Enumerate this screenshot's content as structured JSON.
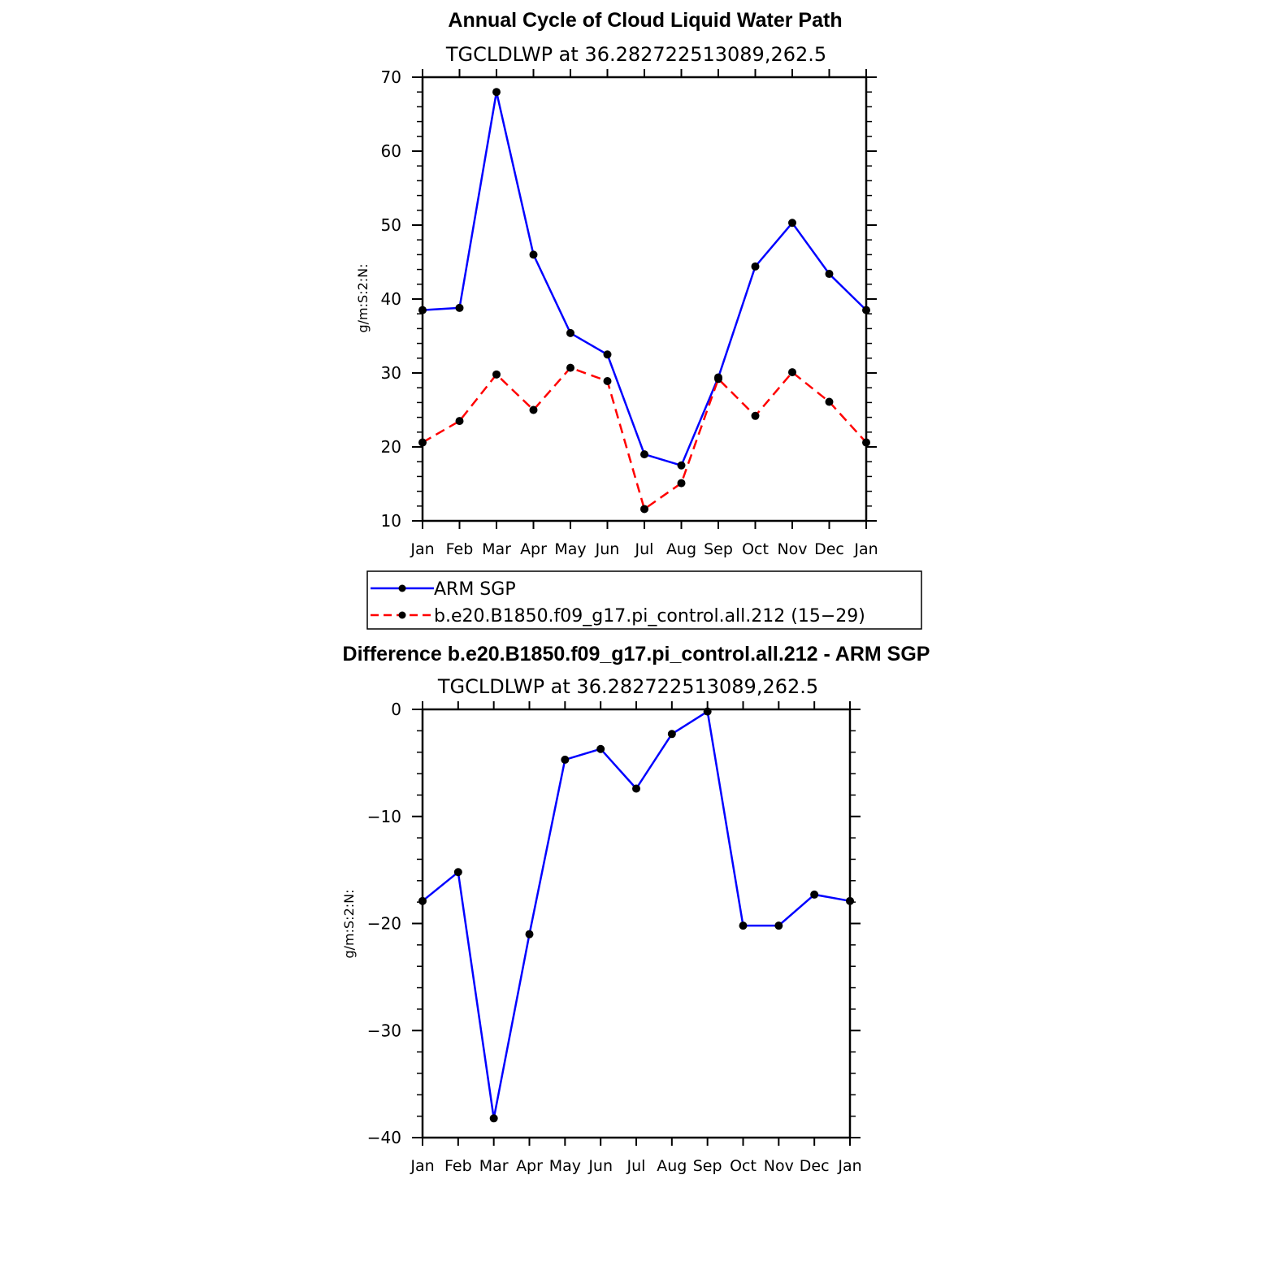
{
  "colors": {
    "series_1": "#0000ff",
    "series_2": "#ff0000",
    "marker": "#000000",
    "axis": "#000000"
  },
  "legend": {
    "entries": [
      {
        "label": "ARM SGP",
        "color": "#0000ff",
        "dash": "solid"
      },
      {
        "label": "b.e20.B1850.f09_g17.pi_control.all.212 (15−29)",
        "color": "#ff0000",
        "dash": "dashed"
      }
    ]
  },
  "chart_data": [
    {
      "type": "line",
      "title": "Annual Cycle of Cloud Liquid Water Path",
      "subtitle": "TGCLDLWP  at  36.282722513089,262.5",
      "ylabel": "g/m:S:2:N:",
      "ylim": [
        10,
        70
      ],
      "yticks": [
        "10",
        "20",
        "30",
        "40",
        "50",
        "60",
        "70"
      ],
      "categories": [
        "Jan",
        "Feb",
        "Mar",
        "Apr",
        "May",
        "Jun",
        "Jul",
        "Aug",
        "Sep",
        "Oct",
        "Nov",
        "Dec",
        "Jan"
      ],
      "series": [
        {
          "name": "ARM SGP",
          "color": "#0000ff",
          "dash": "solid",
          "values": [
            38.5,
            38.8,
            68.0,
            46.0,
            35.4,
            32.5,
            19.0,
            17.5,
            29.4,
            44.4,
            50.3,
            43.4,
            38.5
          ]
        },
        {
          "name": "b.e20.B1850.f09_g17.pi_control.all.212 (15−29)",
          "color": "#ff0000",
          "dash": "dashed",
          "values": [
            20.6,
            23.5,
            29.8,
            25.0,
            30.7,
            28.9,
            11.6,
            15.1,
            29.2,
            24.2,
            30.1,
            26.1,
            20.6
          ]
        }
      ]
    },
    {
      "type": "line",
      "title": "Difference b.e20.B1850.f09_g17.pi_control.all.212 - ARM SGP",
      "subtitle": "TGCLDLWP  at  36.282722513089,262.5",
      "ylabel": "g/m:S:2:N:",
      "ylim": [
        -40,
        0
      ],
      "yticks": [
        "−40",
        "−30",
        "−20",
        "−10",
        "0"
      ],
      "categories": [
        "Jan",
        "Feb",
        "Mar",
        "Apr",
        "May",
        "Jun",
        "Jul",
        "Aug",
        "Sep",
        "Oct",
        "Nov",
        "Dec",
        "Jan"
      ],
      "series": [
        {
          "name": "difference",
          "color": "#0000ff",
          "dash": "solid",
          "values": [
            -17.9,
            -15.2,
            -38.2,
            -21.0,
            -4.7,
            -3.7,
            -7.4,
            -2.3,
            -0.2,
            -20.2,
            -20.2,
            -17.3,
            -17.9
          ]
        }
      ]
    }
  ]
}
